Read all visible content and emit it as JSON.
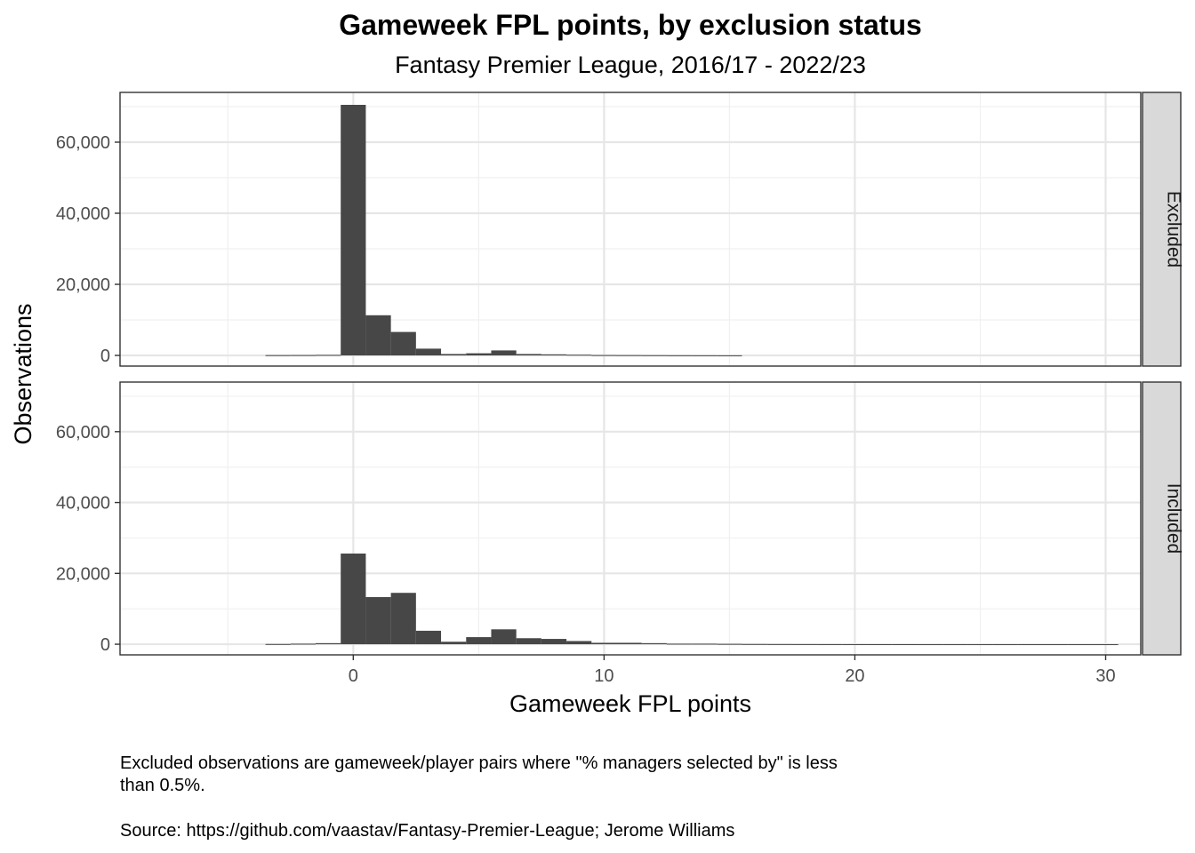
{
  "chart_data": {
    "type": "bar",
    "title": "Gameweek FPL points, by exclusion status",
    "subtitle": "Fantasy Premier League, 2016/17 - 2022/23",
    "xlabel": "Gameweek FPL points",
    "ylabel": "Observations",
    "xlim": [
      -9.3,
      31.4
    ],
    "ylim": [
      -3000,
      74000
    ],
    "x_ticks": [
      0,
      10,
      20,
      30
    ],
    "x_tick_labels": [
      "0",
      "10",
      "20",
      "30"
    ],
    "y_ticks": [
      0,
      20000,
      40000,
      60000
    ],
    "y_tick_labels": [
      "0",
      "20,000",
      "40,000",
      "60,000"
    ],
    "bin_width": 1,
    "grid": true,
    "bar_color": "#474747",
    "panels": [
      {
        "label": "Excluded",
        "bins": [
          {
            "x": -3,
            "count": 80
          },
          {
            "x": -2,
            "count": 100
          },
          {
            "x": -1,
            "count": 150
          },
          {
            "x": 0,
            "count": 70500
          },
          {
            "x": 1,
            "count": 11300
          },
          {
            "x": 2,
            "count": 6600
          },
          {
            "x": 3,
            "count": 1900
          },
          {
            "x": 4,
            "count": 400
          },
          {
            "x": 5,
            "count": 600
          },
          {
            "x": 6,
            "count": 1400
          },
          {
            "x": 7,
            "count": 400
          },
          {
            "x": 8,
            "count": 300
          },
          {
            "x": 9,
            "count": 200
          },
          {
            "x": 10,
            "count": 100
          },
          {
            "x": 11,
            "count": 80
          },
          {
            "x": 12,
            "count": 60
          },
          {
            "x": 13,
            "count": 40
          },
          {
            "x": 14,
            "count": 30
          },
          {
            "x": 15,
            "count": 20
          }
        ]
      },
      {
        "label": "Included",
        "bins": [
          {
            "x": -3,
            "count": 60
          },
          {
            "x": -2,
            "count": 150
          },
          {
            "x": -1,
            "count": 300
          },
          {
            "x": 0,
            "count": 25600
          },
          {
            "x": 1,
            "count": 13300
          },
          {
            "x": 2,
            "count": 14500
          },
          {
            "x": 3,
            "count": 3800
          },
          {
            "x": 4,
            "count": 700
          },
          {
            "x": 5,
            "count": 2000
          },
          {
            "x": 6,
            "count": 4200
          },
          {
            "x": 7,
            "count": 1700
          },
          {
            "x": 8,
            "count": 1500
          },
          {
            "x": 9,
            "count": 900
          },
          {
            "x": 10,
            "count": 400
          },
          {
            "x": 11,
            "count": 400
          },
          {
            "x": 12,
            "count": 300
          },
          {
            "x": 13,
            "count": 150
          },
          {
            "x": 14,
            "count": 150
          },
          {
            "x": 15,
            "count": 100
          },
          {
            "x": 16,
            "count": 60
          },
          {
            "x": 17,
            "count": 40
          },
          {
            "x": 18,
            "count": 30
          },
          {
            "x": 19,
            "count": 20
          },
          {
            "x": 20,
            "count": 15
          },
          {
            "x": 21,
            "count": 10
          },
          {
            "x": 22,
            "count": 10
          },
          {
            "x": 23,
            "count": 5
          },
          {
            "x": 24,
            "count": 5
          },
          {
            "x": 25,
            "count": 5
          },
          {
            "x": 26,
            "count": 5
          },
          {
            "x": 27,
            "count": 5
          },
          {
            "x": 28,
            "count": 5
          },
          {
            "x": 29,
            "count": 5
          },
          {
            "x": 30,
            "count": 5
          }
        ]
      }
    ],
    "caption_lines": [
      "Excluded observations are gameweek/player pairs where \"% managers selected by\" is less",
      "than 0.5%."
    ],
    "source": "Source: https://github.com/vaastav/Fantasy-Premier-League; Jerome Williams"
  }
}
